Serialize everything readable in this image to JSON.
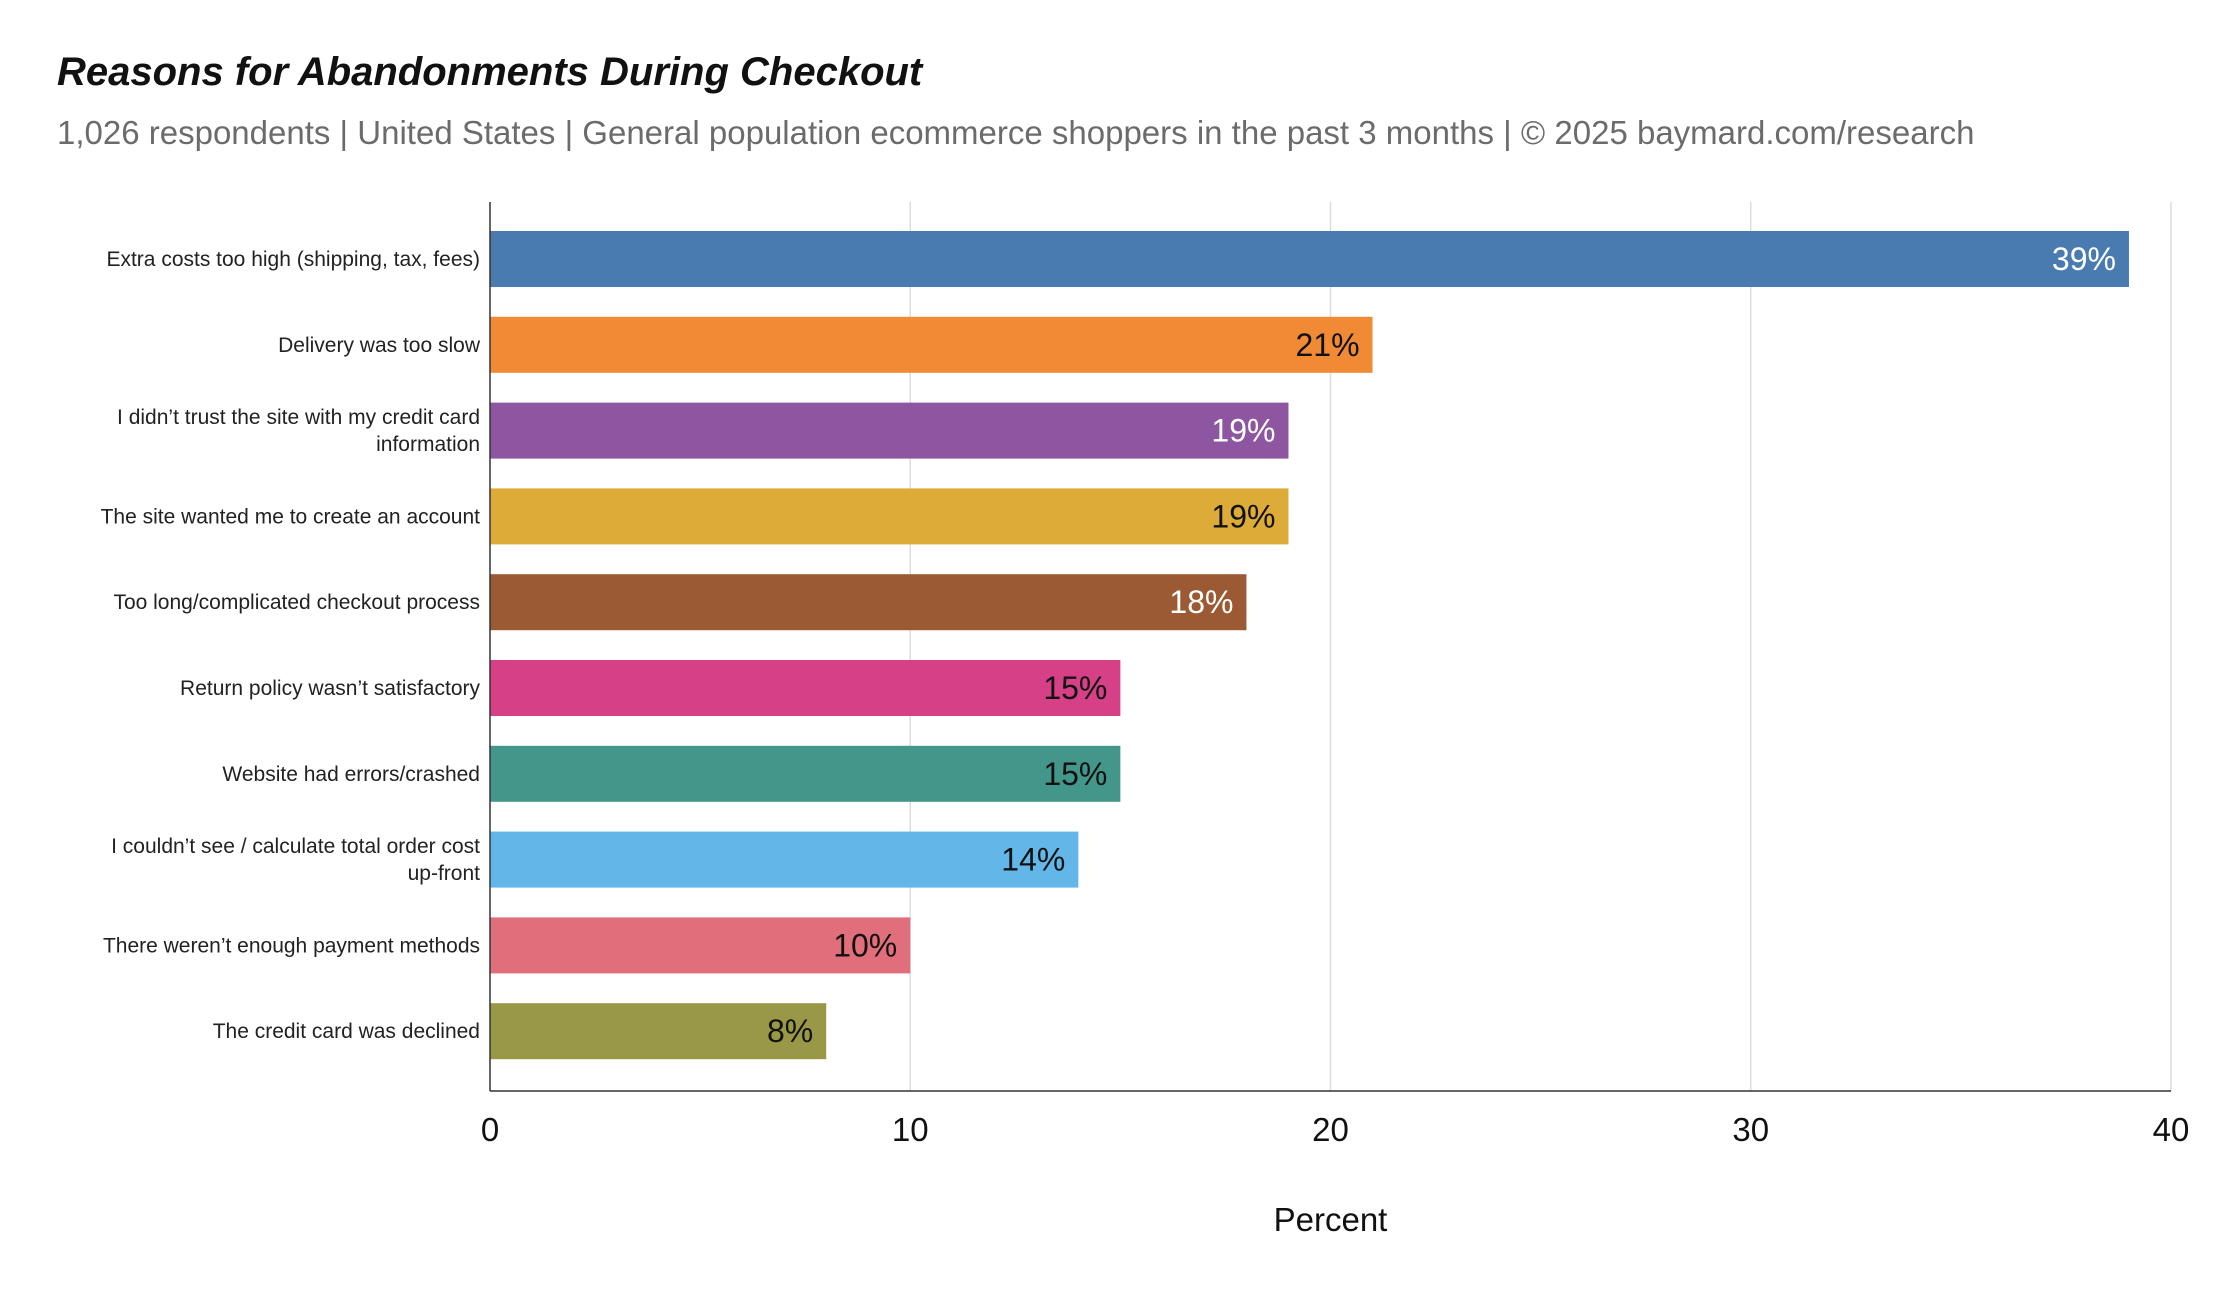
{
  "chart_data": {
    "type": "bar",
    "orientation": "horizontal",
    "title": "Reasons for Abandonments During Checkout",
    "subtitle": "1,026 respondents  |  United States  |  General population ecommerce shoppers in the past 3 months | © 2025 baymard.com/research",
    "xlabel": "Percent",
    "ylabel": "",
    "xlim": [
      0,
      40
    ],
    "xticks": [
      0,
      10,
      20,
      30,
      40
    ],
    "grid": true,
    "legend": "none",
    "categories": [
      [
        "Extra costs too high (shipping, tax, fees)"
      ],
      [
        "Delivery was too slow"
      ],
      [
        "I didn’t trust the site with my credit card",
        "information"
      ],
      [
        "The site wanted me to create an account"
      ],
      [
        "Too long/complicated checkout process"
      ],
      [
        "Return policy wasn’t satisfactory"
      ],
      [
        "Website had errors/crashed"
      ],
      [
        "I couldn’t see / calculate total order cost",
        "up-front"
      ],
      [
        "There weren’t enough payment methods"
      ],
      [
        "The credit card was declined"
      ]
    ],
    "values": [
      39,
      21,
      19,
      19,
      18,
      15,
      15,
      14,
      10,
      8
    ],
    "value_labels": [
      "39%",
      "21%",
      "19%",
      "19%",
      "18%",
      "15%",
      "15%",
      "14%",
      "10%",
      "8%"
    ],
    "colors": [
      "#4a7bb0",
      "#f08a35",
      "#8e55a0",
      "#ddab37",
      "#9b5a33",
      "#d64086",
      "#43978a",
      "#62b7e8",
      "#e06f7b",
      "#989846"
    ],
    "label_colors": [
      "#ffffff",
      "#111111",
      "#ffffff",
      "#111111",
      "#ffffff",
      "#111111",
      "#111111",
      "#111111",
      "#111111",
      "#111111"
    ]
  }
}
